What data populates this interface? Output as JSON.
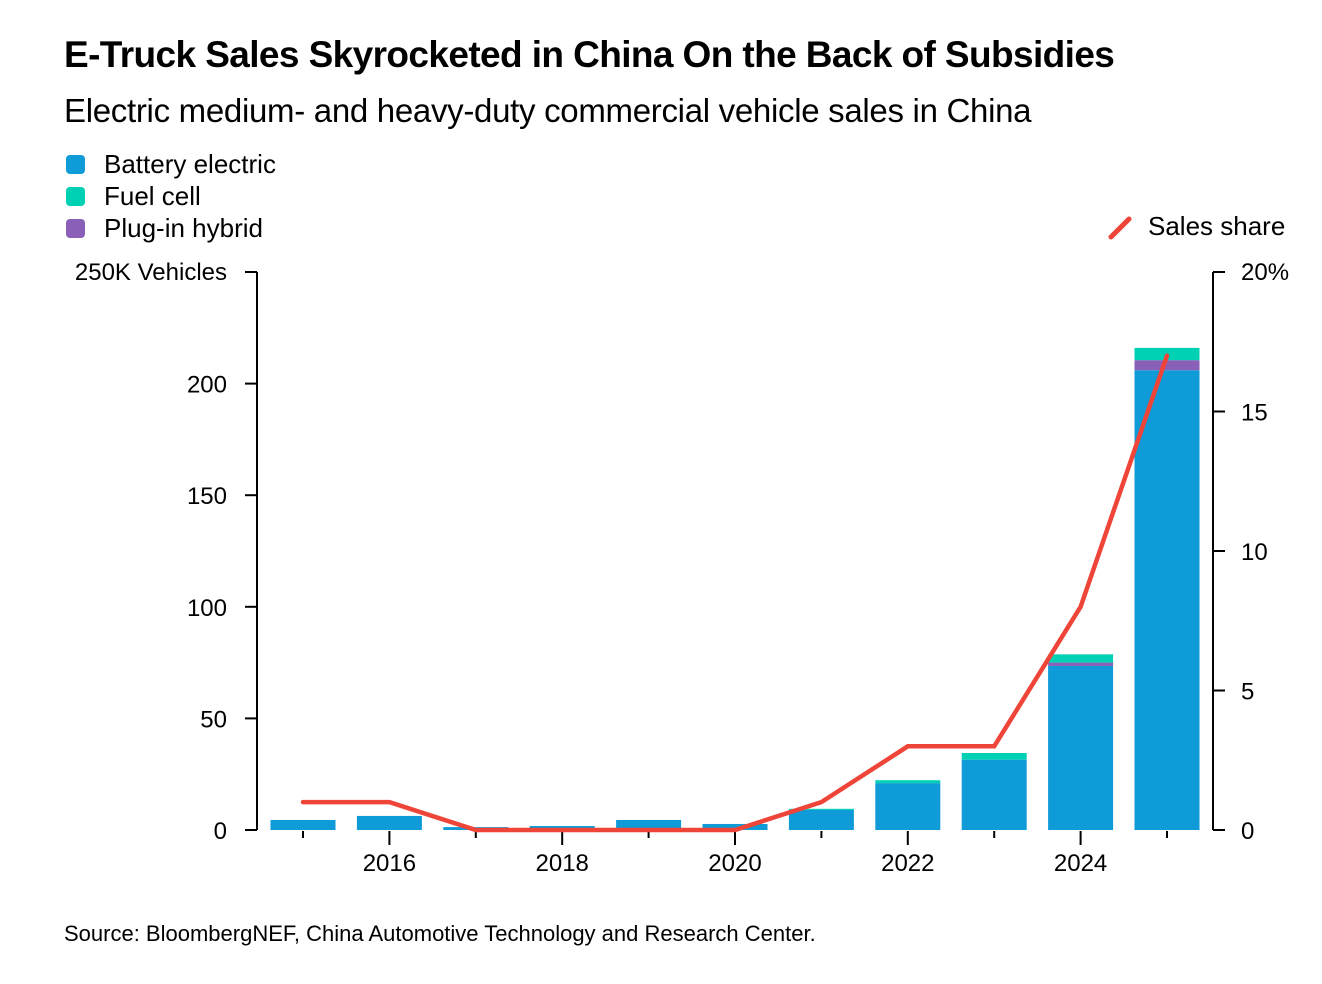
{
  "header": {
    "title": "E-Truck Sales Skyrocketed in China On the Back of Subsidies",
    "subtitle": "Electric medium- and heavy-duty commercial vehicle sales in China"
  },
  "legend": {
    "items": [
      {
        "label": "Battery electric",
        "color": "#0f9ad8"
      },
      {
        "label": "Fuel cell",
        "color": "#00d0b4"
      },
      {
        "label": "Plug-in hybrid",
        "color": "#8a5fb8"
      }
    ],
    "line_label": "Sales share",
    "line_color": "#ef4438"
  },
  "footer": {
    "source": "Source: BloombergNEF, China Automotive Technology and Research Center."
  },
  "chart_data": {
    "type": "bar",
    "stacked": true,
    "title": "E-Truck Sales Skyrocketed in China On the Back of Subsidies",
    "subtitle": "Electric medium- and heavy-duty commercial vehicle sales in China",
    "categories": [
      "2015",
      "2016",
      "2017",
      "2018",
      "2019",
      "2020",
      "2021",
      "2022",
      "2023",
      "2024",
      "2025"
    ],
    "x_tick_labels": [
      "2016",
      "2018",
      "2020",
      "2022",
      "2024"
    ],
    "series": [
      {
        "name": "Battery electric",
        "color": "#0f9ad8",
        "axis": "left",
        "values": [
          4.5,
          6.3,
          1.3,
          1.8,
          4.5,
          2.7,
          9.0,
          21.0,
          31.5,
          73.5,
          206.0
        ]
      },
      {
        "name": "Plug-in hybrid",
        "color": "#8a5fb8",
        "axis": "left",
        "values": [
          0,
          0,
          0,
          0,
          0,
          0,
          0,
          0,
          0,
          1.5,
          4.5
        ]
      },
      {
        "name": "Fuel cell",
        "color": "#00d0b4",
        "axis": "left",
        "values": [
          0,
          0,
          0,
          0,
          0,
          0,
          0.5,
          1.3,
          3.0,
          3.7,
          5.5
        ]
      },
      {
        "name": "Sales share",
        "type": "line",
        "color": "#ef4438",
        "axis": "right",
        "values": [
          1,
          1,
          0,
          0,
          0,
          0,
          1,
          3,
          3,
          8,
          17
        ]
      }
    ],
    "left_axis": {
      "label": "250K Vehicles",
      "ticks": [
        "0",
        "50",
        "100",
        "150",
        "200"
      ],
      "tick_values": [
        0,
        50,
        100,
        150,
        200
      ],
      "range": [
        0,
        250
      ]
    },
    "right_axis": {
      "label": "20%",
      "ticks": [
        "0",
        "5",
        "10",
        "15"
      ],
      "tick_values": [
        0,
        5,
        10,
        15
      ],
      "range": [
        0,
        20
      ]
    },
    "grid": false,
    "legend_position": "top-left",
    "source": "Source: BloombergNEF, China Automotive Technology and Research Center."
  }
}
